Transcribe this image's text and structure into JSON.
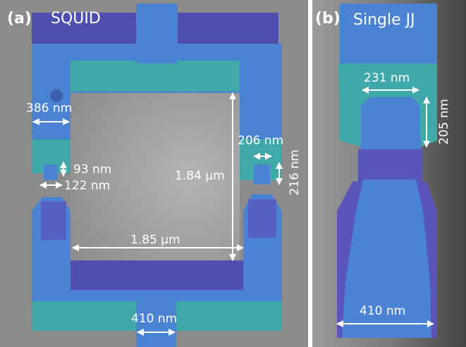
{
  "panels": [
    {
      "label": "(a)",
      "title": "SQUID",
      "annotations": [
        "386 nm",
        "93 nm",
        "122 nm",
        "1.84 μm",
        "206 nm",
        "216 nm",
        "1.85 μm",
        "410 nm"
      ]
    },
    {
      "label": "(b)",
      "title": "Single JJ",
      "annotations": [
        "231 nm",
        "205 nm",
        "410 nm"
      ]
    }
  ]
}
